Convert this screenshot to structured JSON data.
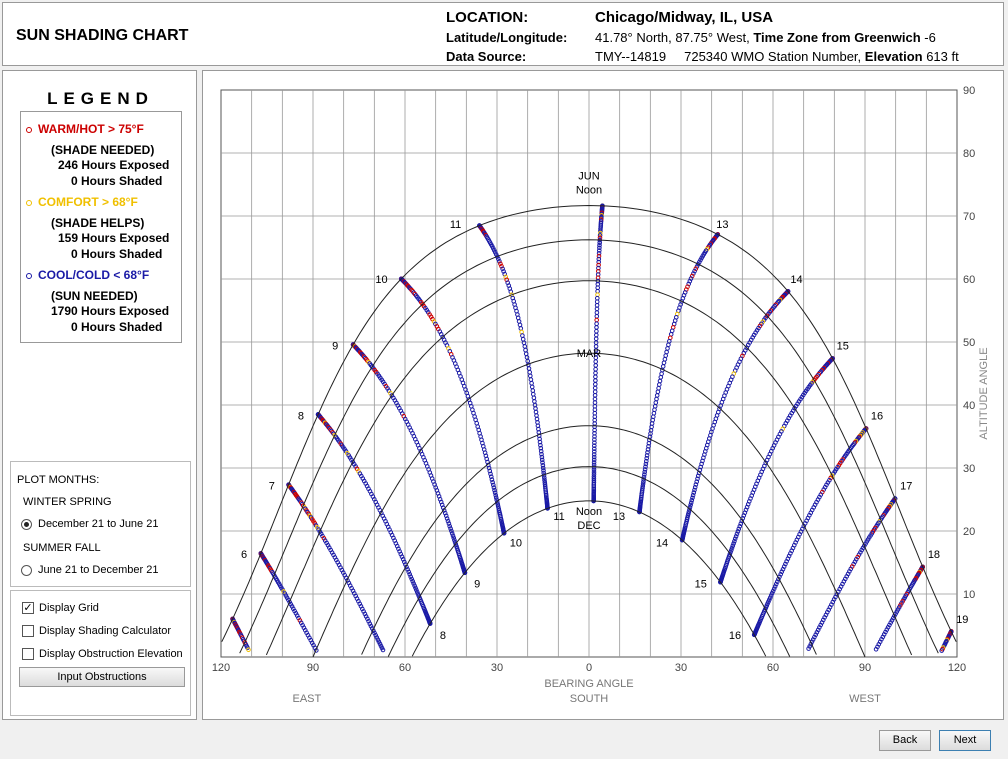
{
  "header": {
    "title": "SUN SHADING CHART",
    "location_label": "LOCATION:",
    "location_value": "Chicago/Midway, IL, USA",
    "latlon_label": "Latitude/Longitude:",
    "latlon_value": "41.78° North, 87.75° West,",
    "timezone_label": "Time Zone from Greenwich",
    "timezone_value": "-6",
    "source_label": "Data Source:",
    "source_value": "TMY--14819     725340 WMO Station Number,",
    "elevation_label": "Elevation",
    "elevation_value": "613 ft"
  },
  "legend": {
    "title": "LEGEND",
    "warm": {
      "label": "WARM/HOT  > 75°F",
      "note": "(SHADE NEEDED)",
      "exposed": "246 Hours Exposed",
      "shaded": "0 Hours Shaded",
      "color": "#cc0000"
    },
    "comfort": {
      "label": "COMFORT  > 68°F",
      "note": "(SHADE HELPS)",
      "exposed": "159 Hours Exposed",
      "shaded": "0 Hours Shaded",
      "color": "#f0c000"
    },
    "cool": {
      "label": "COOL/COLD  < 68°F",
      "note": "(SUN NEEDED)",
      "exposed": "1790 Hours Exposed",
      "shaded": "0 Hours Shaded",
      "color": "#1a1aa6"
    }
  },
  "plot_months": {
    "label": "PLOT MONTHS:",
    "winter_spring": "WINTER SPRING",
    "option1": "December 21 to June 21",
    "summer_fall": "SUMMER FALL",
    "option2": "June 21 to December 21",
    "selected": "December 21 to June 21"
  },
  "options": {
    "display_grid": {
      "label": "Display Grid",
      "checked": true
    },
    "shading_calc": {
      "label": "Display Shading Calculator",
      "checked": false
    },
    "obstruction": {
      "label": "Display Obstruction Elevation",
      "checked": false
    },
    "input_button": "Input Obstructions"
  },
  "nav": {
    "back": "Back",
    "next": "Next"
  },
  "chart_data": {
    "type": "scatter",
    "xlabel": "BEARING ANGLE",
    "xlabel_sub": "SOUTH",
    "ylabel": "ALTITUDE ANGLE",
    "east_label": "EAST",
    "west_label": "WEST",
    "xlim": [
      -120,
      120
    ],
    "ylim": [
      0,
      90
    ],
    "x_tick_labels": [
      "120",
      "90",
      "60",
      "30",
      "0",
      "30",
      "60",
      "90",
      "120"
    ],
    "y_tick_labels": [
      "10",
      "20",
      "30",
      "40",
      "50",
      "60",
      "70",
      "80",
      "90"
    ],
    "grid": true,
    "latitude": 41.78,
    "jun_label": "JUN",
    "noon_label": "Noon",
    "mar_label": "MAR",
    "dec_label": "DEC",
    "summer_hour_labels": [
      "6",
      "7",
      "8",
      "9",
      "10",
      "11",
      "13",
      "14",
      "15",
      "16",
      "17",
      "18",
      "19"
    ],
    "winter_hour_labels": [
      "8",
      "9",
      "10",
      "11",
      "13",
      "14",
      "15",
      "16"
    ],
    "series": [
      {
        "name": "WARM/HOT",
        "color": "#cc0000"
      },
      {
        "name": "COMFORT",
        "color": "#f0c000"
      },
      {
        "name": "COOL/COLD",
        "color": "#1a1aa6"
      }
    ]
  }
}
